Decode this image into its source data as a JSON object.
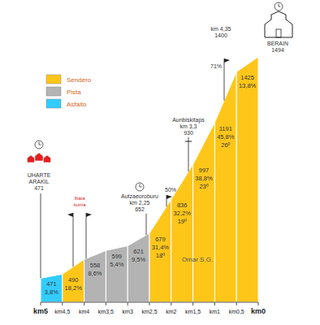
{
  "chart_data": {
    "type": "area",
    "x": [
      5,
      4.5,
      4,
      3.5,
      3,
      2.5,
      2,
      1.5,
      1,
      0.5,
      0
    ],
    "values": [
      471,
      490,
      558,
      599,
      621,
      679,
      836,
      997,
      1191,
      1425,
      1494
    ],
    "xlim": [
      5,
      0
    ],
    "xticks": [
      {
        "value": 5,
        "label": "km5"
      },
      {
        "value": 4.5,
        "label": "km4,5"
      },
      {
        "value": 4,
        "label": "km4"
      },
      {
        "value": 3.5,
        "label": "km3,5"
      },
      {
        "value": 3,
        "label": "km3"
      },
      {
        "value": 2.5,
        "label": "km2,5"
      },
      {
        "value": 2,
        "label": "km2"
      },
      {
        "value": 1.5,
        "label": "km1,5"
      },
      {
        "value": 1,
        "label": "km1"
      },
      {
        "value": 0.5,
        "label": "km0,5"
      },
      {
        "value": 0,
        "label": "km0"
      }
    ],
    "ylim": [
      360,
      1494
    ],
    "yticks": [],
    "tick_labels": "x",
    "grid": false,
    "data_labels": true,
    "legend": "top-left",
    "surface_types": [
      {
        "name": "Sendero",
        "color": "#ffc61a"
      },
      {
        "name": "Pista",
        "color": "#b3b3b3"
      },
      {
        "name": "Asfalto",
        "color": "#33ccff"
      }
    ],
    "surfaces": [
      "Asfalto",
      "Sendero",
      "Pista",
      "Pista",
      "Pista",
      "Sendero",
      "Sendero",
      "Sendero",
      "Sendero",
      "Sendero"
    ],
    "grades": [
      3.8,
      18.2,
      8.6,
      5.4,
      9.5,
      31.4,
      32.2,
      38.8,
      45.8,
      13.8
    ],
    "grade_labels": [
      "3,8%",
      "18,2%",
      "8,6%",
      "5,4%",
      "9,5%",
      "31,4%",
      "32,2%",
      "38,8%",
      "45,8%",
      "13,8%"
    ],
    "degrees": [
      null,
      null,
      null,
      null,
      null,
      18,
      19,
      23,
      26,
      null
    ],
    "degree_labels": [
      null,
      null,
      null,
      null,
      null,
      "18º",
      "19º",
      "23º",
      "26º",
      null
    ],
    "waypoints": [
      {
        "name": [
          "UHARTE",
          "ARAKIL"
        ],
        "elevation": 471
      },
      {
        "name": [
          "Ibaia",
          "iturria"
        ]
      },
      {
        "name": [
          "Autzaeoroburu"
        ],
        "km": "km 2,25",
        "elevation": 652
      },
      {
        "name": [
          "Aunbiskitaps"
        ],
        "km": "km 3,3",
        "elevation": 930
      },
      {
        "km": "km 4,35",
        "elevation": 1400
      },
      {
        "name": [
          "BERAIN"
        ],
        "elevation": 1494
      }
    ],
    "signs": [
      "50%",
      "71%"
    ],
    "credit": "Omar S.G."
  }
}
